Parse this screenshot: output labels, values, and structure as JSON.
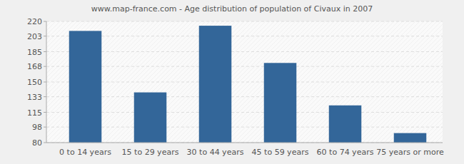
{
  "chart_data": {
    "type": "bar",
    "title": "www.map-france.com - Age distribution of population of Civaux in 2007",
    "categories": [
      "0 to 14 years",
      "15 to 29 years",
      "30 to 44 years",
      "45 to 59 years",
      "60 to 74 years",
      "75 years or more"
    ],
    "values": [
      209,
      138,
      215,
      172,
      123,
      91
    ],
    "color": "#336699",
    "ylim": [
      80,
      220
    ],
    "yticks": [
      80,
      98,
      115,
      133,
      150,
      168,
      185,
      203,
      220
    ],
    "grid": true
  }
}
